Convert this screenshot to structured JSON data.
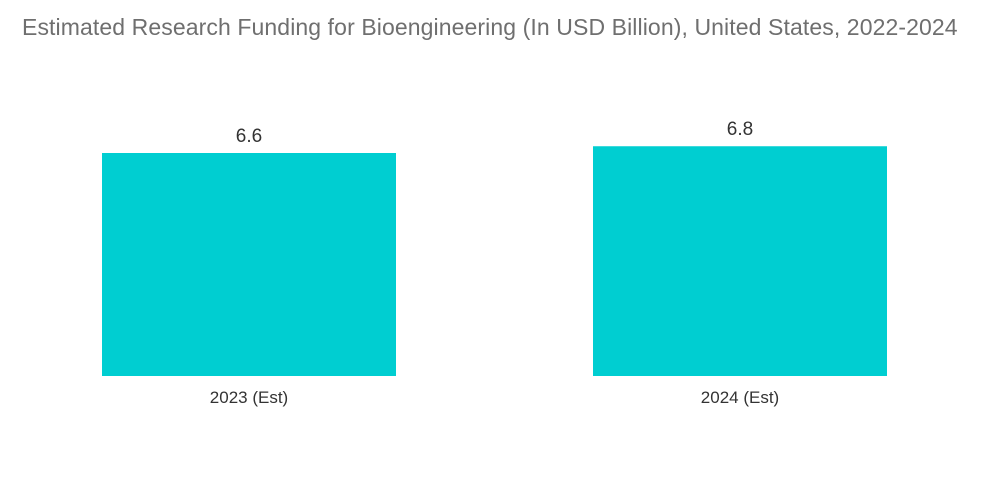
{
  "chart_data": {
    "type": "bar",
    "title": "Estimated Research Funding for Bioengineering (In USD Billion), United States, 2022-2024",
    "xlabel": "",
    "ylabel": "",
    "categories": [
      "2023 (Est)",
      "2024 (Est)"
    ],
    "values": [
      6.6,
      6.8
    ],
    "value_labels": [
      "6.6",
      "6.8"
    ],
    "ylim": [
      0,
      7
    ],
    "grid": false,
    "legend": "none",
    "bar_color": "#00CED1"
  }
}
